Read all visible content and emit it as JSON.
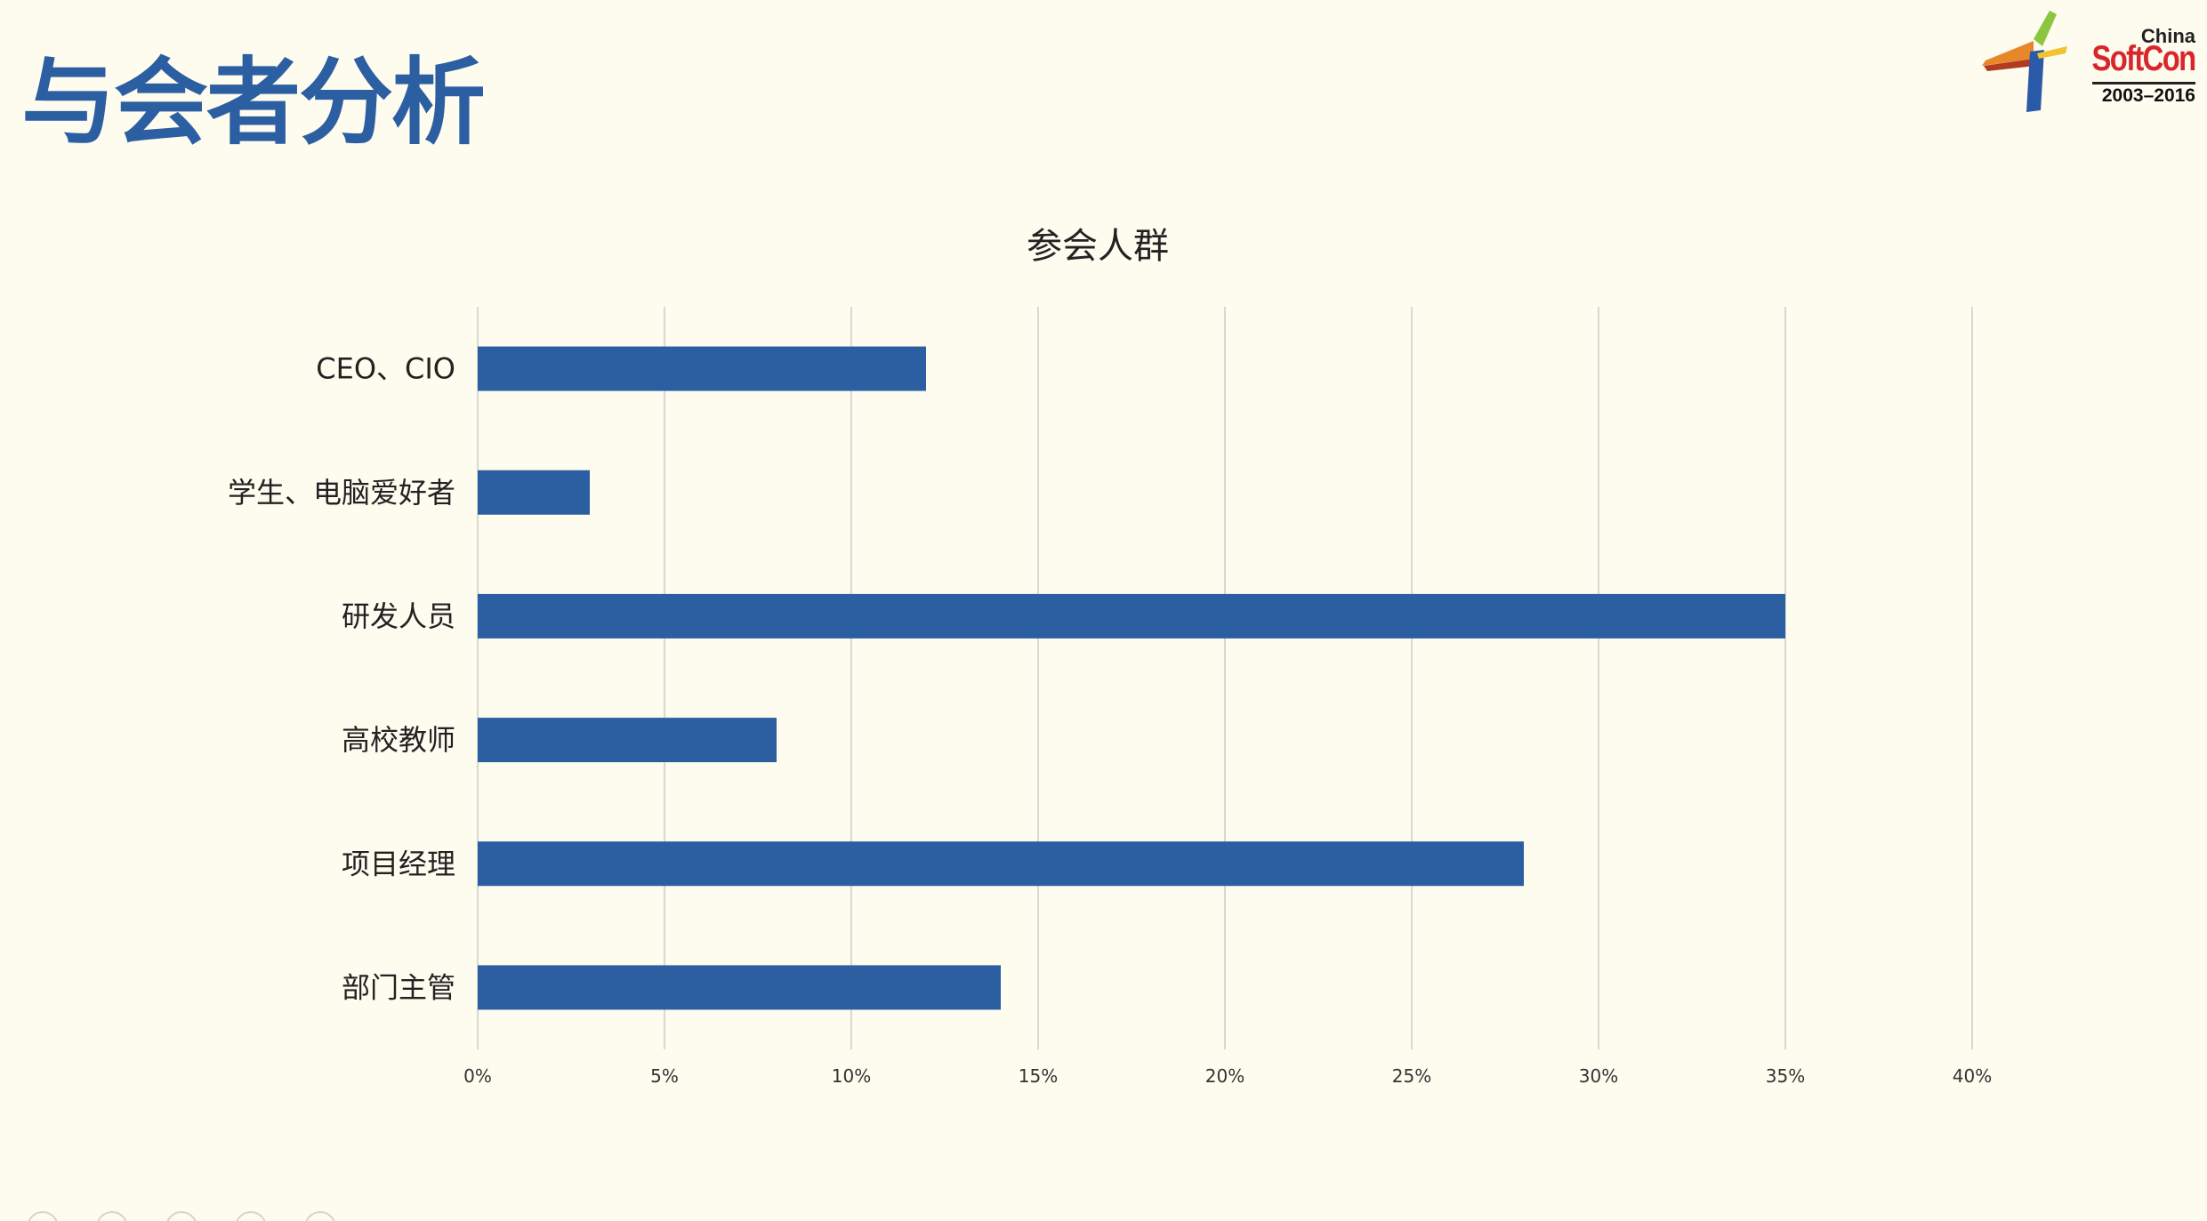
{
  "slide": {
    "title": "与会者分析"
  },
  "logo": {
    "region": "China",
    "name": "SoftCon",
    "years": "2003–2016"
  },
  "chart_data": {
    "type": "bar",
    "orientation": "horizontal",
    "title": "参会人群",
    "categories": [
      "CEO、CIO",
      "学生、电脑爱好者",
      "研发人员",
      "高校教师",
      "项目经理",
      "部门主管"
    ],
    "values": [
      12,
      3,
      35,
      8,
      28,
      14
    ],
    "unit": "%",
    "xlim": [
      0,
      40
    ],
    "xticks": [
      0,
      5,
      10,
      15,
      20,
      25,
      30,
      35,
      40
    ],
    "xtick_labels": [
      "0%",
      "5%",
      "10%",
      "15%",
      "20%",
      "25%",
      "30%",
      "35%",
      "40%"
    ],
    "grid": true,
    "legend": "none",
    "bar_color": "#2c5fa2",
    "grid_color": "#d9d9d2"
  }
}
